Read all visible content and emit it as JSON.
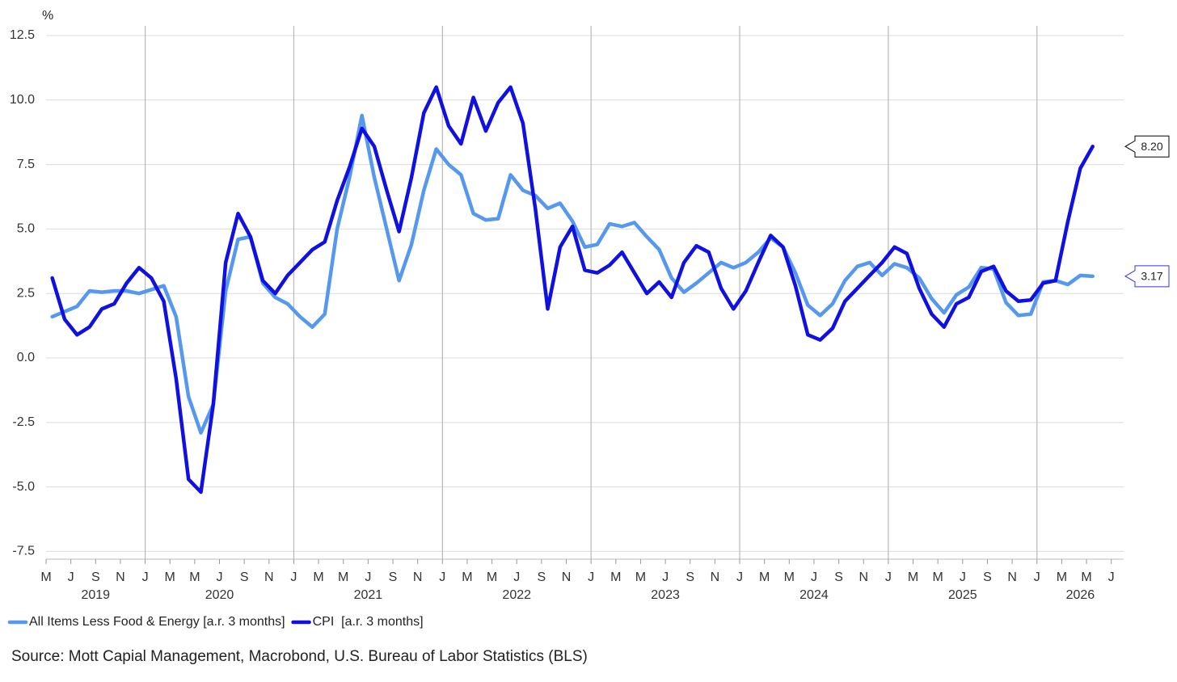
{
  "chart_data": {
    "type": "line",
    "y_unit_label": "%",
    "source": "Source: Mott Capial Management, Macrobond, U.S. Bureau of Labor Statistics (BLS)",
    "x": [
      "2019-05",
      "2019-06",
      "2019-07",
      "2019-08",
      "2019-09",
      "2019-10",
      "2019-11",
      "2019-12",
      "2020-01",
      "2020-02",
      "2020-03",
      "2020-04",
      "2020-05",
      "2020-06",
      "2020-07",
      "2020-08",
      "2020-09",
      "2020-10",
      "2020-11",
      "2020-12",
      "2021-01",
      "2021-02",
      "2021-03",
      "2021-04",
      "2021-05",
      "2021-06",
      "2021-07",
      "2021-08",
      "2021-09",
      "2021-10",
      "2021-11",
      "2021-12",
      "2022-01",
      "2022-02",
      "2022-03",
      "2022-04",
      "2022-05",
      "2022-06",
      "2022-07",
      "2022-08",
      "2022-09",
      "2022-10",
      "2022-11",
      "2022-12",
      "2023-01",
      "2023-02",
      "2023-03",
      "2023-04",
      "2023-05",
      "2023-06",
      "2023-07",
      "2023-08",
      "2023-09",
      "2023-10",
      "2023-11",
      "2023-12",
      "2024-01",
      "2024-02",
      "2024-03",
      "2024-04",
      "2024-05",
      "2024-06",
      "2024-07",
      "2024-08",
      "2024-09",
      "2024-10",
      "2024-11",
      "2024-12",
      "2025-01",
      "2025-02",
      "2025-03",
      "2025-04",
      "2025-05",
      "2025-06",
      "2025-07",
      "2025-08",
      "2025-09",
      "2025-10",
      "2025-11",
      "2025-12",
      "2026-01",
      "2026-02",
      "2026-03",
      "2026-04",
      "2026-05"
    ],
    "series": [
      {
        "name": "All Items Less Food & Energy [a.r. 3 months]",
        "color": "#5598ee",
        "end_label": "3.17",
        "end_label_border": "#3333ee",
        "values": [
          1.6,
          1.8,
          2.0,
          2.6,
          2.55,
          2.6,
          2.6,
          2.5,
          2.65,
          2.8,
          1.6,
          -1.5,
          -2.9,
          -1.8,
          2.6,
          4.6,
          4.7,
          2.9,
          2.35,
          2.1,
          1.6,
          1.2,
          1.7,
          5.0,
          7.0,
          9.4,
          7.0,
          5.0,
          3.0,
          4.4,
          6.5,
          8.1,
          7.5,
          7.1,
          5.6,
          5.35,
          5.4,
          7.1,
          6.5,
          6.3,
          5.8,
          6.0,
          5.3,
          4.3,
          4.4,
          5.2,
          5.1,
          5.25,
          4.7,
          4.2,
          3.1,
          2.55,
          2.9,
          3.3,
          3.7,
          3.5,
          3.7,
          4.1,
          4.65,
          4.3,
          3.3,
          2.05,
          1.65,
          2.1,
          3.0,
          3.55,
          3.7,
          3.2,
          3.65,
          3.5,
          3.1,
          2.3,
          1.75,
          2.45,
          2.75,
          3.5,
          3.45,
          2.15,
          1.65,
          1.7,
          2.95,
          3.0,
          2.85,
          3.2,
          3.17
        ]
      },
      {
        "name": "CPI  [a.r. 3 months]",
        "color": "#1010e0",
        "end_label": "8.20",
        "end_label_border": "#000000",
        "values": [
          3.1,
          1.5,
          0.9,
          1.2,
          1.9,
          2.1,
          2.9,
          3.5,
          3.1,
          2.2,
          -0.8,
          -4.7,
          -5.2,
          -1.8,
          3.7,
          5.6,
          4.7,
          3.0,
          2.5,
          3.2,
          3.7,
          4.2,
          4.5,
          6.1,
          7.4,
          8.9,
          8.2,
          6.5,
          4.9,
          7.0,
          9.5,
          10.5,
          9.0,
          8.3,
          10.1,
          8.8,
          9.9,
          10.5,
          9.1,
          5.8,
          1.9,
          4.3,
          5.1,
          3.4,
          3.3,
          3.6,
          4.1,
          3.3,
          2.5,
          2.95,
          2.35,
          3.7,
          4.35,
          4.1,
          2.7,
          1.9,
          2.6,
          3.7,
          4.75,
          4.3,
          2.8,
          0.9,
          0.7,
          1.15,
          2.2,
          2.7,
          3.2,
          3.7,
          4.3,
          4.05,
          2.7,
          1.7,
          1.2,
          2.1,
          2.35,
          3.35,
          3.55,
          2.6,
          2.2,
          2.25,
          2.9,
          3.0,
          5.3,
          7.35,
          8.2
        ]
      }
    ],
    "xlim": [
      "2019-05",
      "2026-08"
    ],
    "xticks": [
      {
        "value": "2019-05",
        "label": "M"
      },
      {
        "value": "2019-07",
        "label": "J"
      },
      {
        "value": "2019-09",
        "label": "S"
      },
      {
        "value": "2019-11",
        "label": "N"
      },
      {
        "value": "2020-01",
        "label": "J"
      },
      {
        "value": "2020-03",
        "label": "M"
      },
      {
        "value": "2020-05",
        "label": "M"
      },
      {
        "value": "2020-07",
        "label": "J"
      },
      {
        "value": "2020-09",
        "label": "S"
      },
      {
        "value": "2020-11",
        "label": "N"
      },
      {
        "value": "2021-01",
        "label": "J"
      },
      {
        "value": "2021-03",
        "label": "M"
      },
      {
        "value": "2021-05",
        "label": "M"
      },
      {
        "value": "2021-07",
        "label": "J"
      },
      {
        "value": "2021-09",
        "label": "S"
      },
      {
        "value": "2021-11",
        "label": "N"
      },
      {
        "value": "2022-01",
        "label": "J"
      },
      {
        "value": "2022-03",
        "label": "M"
      },
      {
        "value": "2022-05",
        "label": "M"
      },
      {
        "value": "2022-07",
        "label": "J"
      },
      {
        "value": "2022-09",
        "label": "S"
      },
      {
        "value": "2022-11",
        "label": "N"
      },
      {
        "value": "2023-01",
        "label": "J"
      },
      {
        "value": "2023-03",
        "label": "M"
      },
      {
        "value": "2023-05",
        "label": "M"
      },
      {
        "value": "2023-07",
        "label": "J"
      },
      {
        "value": "2023-09",
        "label": "S"
      },
      {
        "value": "2023-11",
        "label": "N"
      },
      {
        "value": "2024-01",
        "label": "J"
      },
      {
        "value": "2024-03",
        "label": "M"
      },
      {
        "value": "2024-05",
        "label": "M"
      },
      {
        "value": "2024-07",
        "label": "J"
      },
      {
        "value": "2024-09",
        "label": "S"
      },
      {
        "value": "2024-11",
        "label": "N"
      },
      {
        "value": "2025-01",
        "label": "J"
      },
      {
        "value": "2025-03",
        "label": "M"
      },
      {
        "value": "2025-05",
        "label": "M"
      },
      {
        "value": "2025-07",
        "label": "J"
      },
      {
        "value": "2025-09",
        "label": "S"
      },
      {
        "value": "2025-11",
        "label": "N"
      },
      {
        "value": "2026-01",
        "label": "J"
      },
      {
        "value": "2026-03",
        "label": "M"
      },
      {
        "value": "2026-05",
        "label": "M"
      },
      {
        "value": "2026-07",
        "label": "J"
      }
    ],
    "x_year_labels": [
      "2019",
      "2020",
      "2021",
      "2022",
      "2023",
      "2024",
      "2025",
      "2026"
    ],
    "ylim": [
      -7.8,
      12.5
    ],
    "yticks": [
      12.5,
      {
        "value": 10,
        "label": "10.0"
      },
      7.5,
      {
        "value": 5,
        "label": "5.0"
      },
      2.5,
      {
        "value": 0,
        "label": "0.0"
      },
      -2.5,
      {
        "value": -5,
        "label": "-5.0"
      },
      -7.5
    ],
    "grid": true
  }
}
